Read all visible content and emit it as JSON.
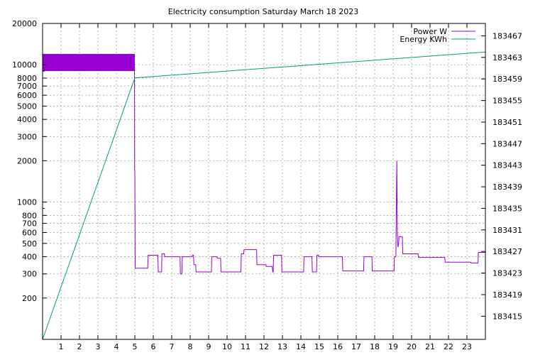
{
  "chart_data": {
    "type": "line",
    "title": "Electricity consumption Saturday March 18 2023",
    "x_ticks": [
      "1",
      "2",
      "3",
      "4",
      "5",
      "6",
      "7",
      "8",
      "9",
      "10",
      "11",
      "12",
      "13",
      "14",
      "15",
      "16",
      "17",
      "18",
      "19",
      "20",
      "21",
      "22",
      "23"
    ],
    "xlim": [
      0,
      24
    ],
    "y_left": {
      "scale": "log",
      "ylim": [
        100,
        20000
      ],
      "ticks": [
        {
          "value": 200,
          "label": "200"
        },
        {
          "value": 300,
          "label": "300"
        },
        {
          "value": 400,
          "label": "400"
        },
        {
          "value": 500,
          "label": "500"
        },
        {
          "value": 600,
          "label": "600"
        },
        {
          "value": 700,
          "label": "700"
        },
        {
          "value": 800,
          "label": "800"
        },
        {
          "value": 1000,
          "label": "1000"
        },
        {
          "value": 2000,
          "label": "2000"
        },
        {
          "value": 3000,
          "label": "3000"
        },
        {
          "value": 4000,
          "label": "4000"
        },
        {
          "value": 5000,
          "label": "5000"
        },
        {
          "value": 6000,
          "label": "6000"
        },
        {
          "value": 7000,
          "label": "7000"
        },
        {
          "value": 8000,
          "label": "8000"
        },
        {
          "value": 10000,
          "label": "10000"
        },
        {
          "value": 20000,
          "label": "20000"
        }
      ]
    },
    "y_right": {
      "scale": "linear",
      "ylim": [
        183410.7,
        183469.3
      ],
      "ticks": [
        "183415",
        "183419",
        "183423",
        "183427",
        "183431",
        "183435",
        "183439",
        "183443",
        "183447",
        "183451",
        "183455",
        "183459",
        "183463",
        "183467"
      ]
    },
    "grid": true,
    "legend_position": "top-right",
    "series": [
      {
        "name": "Power W",
        "color": "#9400d3",
        "axis": "left",
        "band": {
          "x": [
            0,
            4.98
          ],
          "low": 9000,
          "high": 12000
        },
        "points": [
          [
            4.98,
            12000
          ],
          [
            4.99,
            1700
          ],
          [
            5.0,
            1700
          ],
          [
            5.02,
            330
          ],
          [
            5.7,
            330
          ],
          [
            5.72,
            410
          ],
          [
            6.25,
            410
          ],
          [
            6.27,
            310
          ],
          [
            6.45,
            310
          ],
          [
            6.47,
            420
          ],
          [
            6.6,
            420
          ],
          [
            6.62,
            400
          ],
          [
            7.45,
            400
          ],
          [
            7.47,
            300
          ],
          [
            7.55,
            300
          ],
          [
            7.57,
            400
          ],
          [
            8.1,
            400
          ],
          [
            8.12,
            410
          ],
          [
            8.18,
            410
          ],
          [
            8.2,
            350
          ],
          [
            8.3,
            350
          ],
          [
            8.32,
            310
          ],
          [
            9.15,
            310
          ],
          [
            9.17,
            400
          ],
          [
            9.45,
            400
          ],
          [
            9.47,
            390
          ],
          [
            9.65,
            390
          ],
          [
            9.67,
            310
          ],
          [
            10.75,
            310
          ],
          [
            10.77,
            420
          ],
          [
            10.9,
            420
          ],
          [
            10.92,
            450
          ],
          [
            11.6,
            450
          ],
          [
            11.62,
            350
          ],
          [
            12.1,
            350
          ],
          [
            12.12,
            340
          ],
          [
            12.45,
            340
          ],
          [
            12.47,
            310
          ],
          [
            12.5,
            310
          ],
          [
            12.52,
            410
          ],
          [
            12.95,
            410
          ],
          [
            12.97,
            310
          ],
          [
            14.15,
            310
          ],
          [
            14.17,
            400
          ],
          [
            14.6,
            400
          ],
          [
            14.62,
            310
          ],
          [
            14.85,
            310
          ],
          [
            14.87,
            410
          ],
          [
            14.95,
            410
          ],
          [
            14.97,
            400
          ],
          [
            16.25,
            400
          ],
          [
            16.27,
            315
          ],
          [
            17.4,
            315
          ],
          [
            17.42,
            400
          ],
          [
            17.85,
            400
          ],
          [
            17.87,
            315
          ],
          [
            19.05,
            315
          ],
          [
            19.07,
            400
          ],
          [
            19.15,
            400
          ],
          [
            19.17,
            790
          ],
          [
            19.2,
            2000
          ],
          [
            19.23,
            600
          ],
          [
            19.26,
            470
          ],
          [
            19.3,
            500
          ],
          [
            19.32,
            560
          ],
          [
            19.5,
            560
          ],
          [
            19.52,
            420
          ],
          [
            20.35,
            420
          ],
          [
            20.37,
            395
          ],
          [
            21.8,
            395
          ],
          [
            21.82,
            365
          ],
          [
            23.2,
            365
          ],
          [
            23.22,
            360
          ],
          [
            23.6,
            360
          ],
          [
            23.62,
            430
          ],
          [
            24.0,
            430
          ]
        ]
      },
      {
        "name": "Energy KWh",
        "color": "#009e73",
        "axis": "right",
        "points": [
          [
            0,
            183410.7
          ],
          [
            5.0,
            183459.2
          ],
          [
            24.0,
            183464.0
          ]
        ]
      }
    ]
  }
}
